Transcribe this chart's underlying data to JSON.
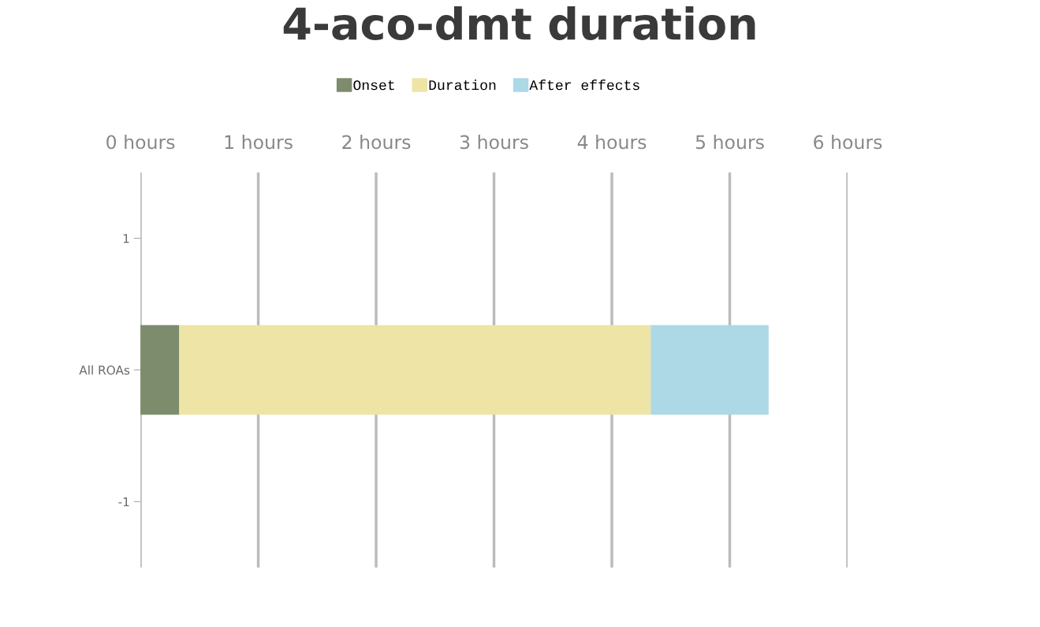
{
  "chart_data": {
    "type": "bar",
    "title": "4-aco-dmt duration",
    "orientation": "horizontal",
    "stacked": true,
    "x": [
      0
    ],
    "series": [
      {
        "name": "Onset",
        "color": "#7d8c6c",
        "values": [
          0.33
        ]
      },
      {
        "name": "Duration",
        "color": "#eee4a6",
        "values": [
          4.0
        ]
      },
      {
        "name": "After effects",
        "color": "#add8e6",
        "values": [
          1.0
        ]
      }
    ],
    "xlim": [
      0,
      6
    ],
    "xticks": [
      {
        "value": 0,
        "label": "0 hours"
      },
      {
        "value": 1,
        "label": "1 hours"
      },
      {
        "value": 2,
        "label": "2 hours"
      },
      {
        "value": 3,
        "label": "3 hours"
      },
      {
        "value": 4,
        "label": "4 hours"
      },
      {
        "value": 5,
        "label": "5 hours"
      },
      {
        "value": 6,
        "label": "6 hours"
      }
    ],
    "ylim": [
      -1.5,
      1.5
    ],
    "yticks": [
      {
        "value": 1,
        "label": "1"
      },
      {
        "value": 0,
        "label": "All ROAs"
      },
      {
        "value": -1,
        "label": "-1"
      }
    ],
    "grid": "x",
    "legend": "top"
  }
}
